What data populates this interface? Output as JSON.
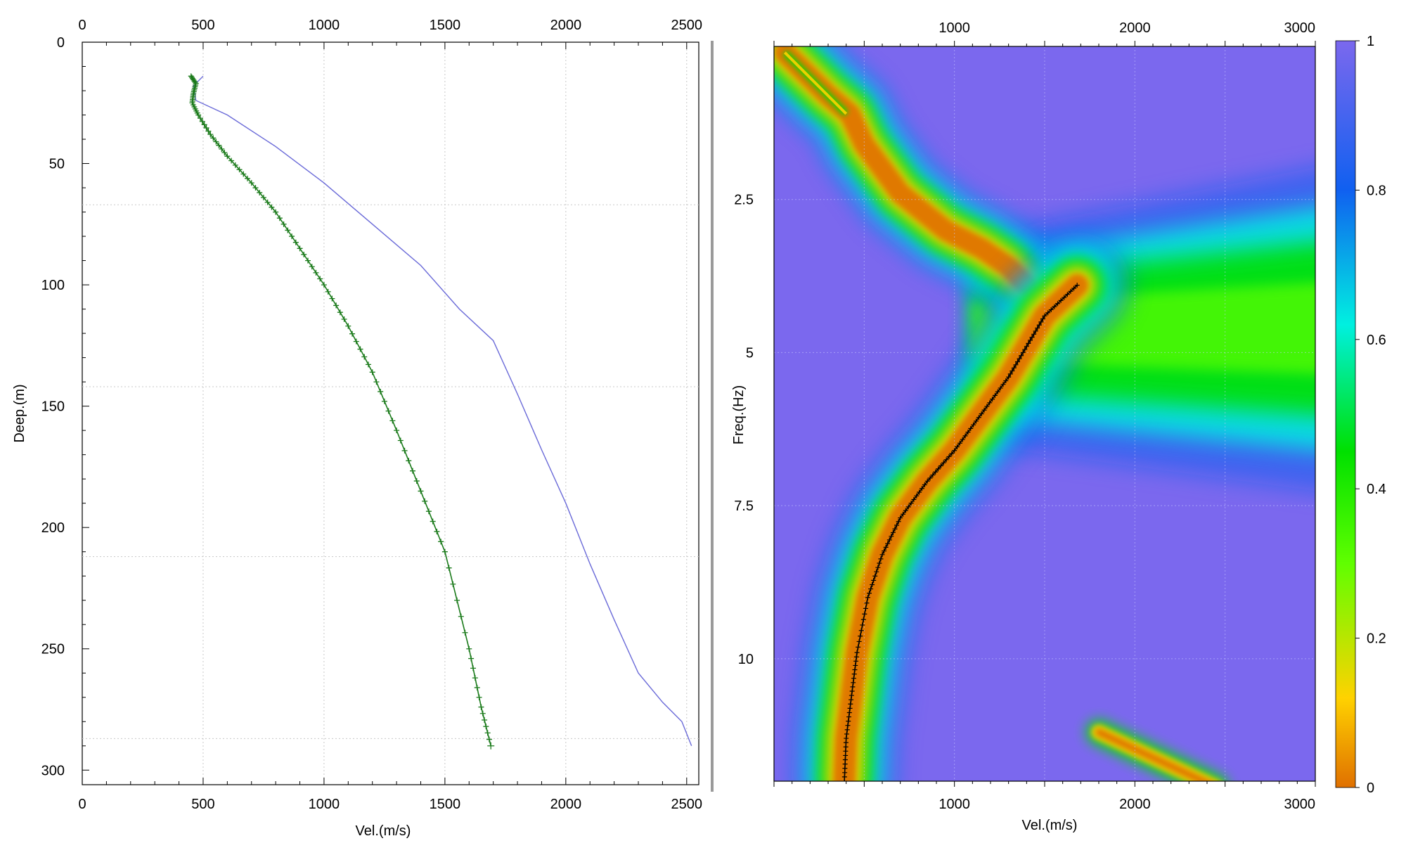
{
  "chart_data": [
    {
      "type": "line",
      "xlabel": "Vel.(m/s)",
      "ylabel": "Deep.(m)",
      "xlim": [
        0,
        2550
      ],
      "ylim": [
        0,
        306
      ],
      "y_inverted": true,
      "x_ticks": [
        0,
        500,
        1000,
        1500,
        2000,
        2500
      ],
      "x_tick_labels": [
        "0",
        "500",
        "1000",
        "1500",
        "2000",
        "2500"
      ],
      "y_ticks": [
        0,
        50,
        100,
        150,
        200,
        250,
        300
      ],
      "y_tick_labels": [
        "0",
        "50",
        "100",
        "150",
        "200",
        "250",
        "300"
      ],
      "x_axis_labels_top_and_bottom": true,
      "grid": "dotted",
      "series": [
        {
          "color": "#6a6ad8",
          "marker": "none",
          "points": [
            [
              500,
              14
            ],
            [
              460,
              18
            ],
            [
              470,
              24
            ],
            [
              600,
              30
            ],
            [
              800,
              43
            ],
            [
              1000,
              58
            ],
            [
              1200,
              75
            ],
            [
              1400,
              92
            ],
            [
              1560,
              110
            ],
            [
              1700,
              123
            ],
            [
              1800,
              145
            ],
            [
              1900,
              168
            ],
            [
              2000,
              190
            ],
            [
              2100,
              215
            ],
            [
              2200,
              238
            ],
            [
              2300,
              260
            ],
            [
              2400,
              272
            ],
            [
              2480,
              280
            ],
            [
              2520,
              290
            ]
          ]
        },
        {
          "color": "#1a7a1a",
          "marker": "+",
          "points": [
            [
              450,
              14
            ],
            [
              470,
              17
            ],
            [
              460,
              21
            ],
            [
              455,
              25
            ],
            [
              480,
              30
            ],
            [
              530,
              38
            ],
            [
              600,
              47
            ],
            [
              700,
              58
            ],
            [
              800,
              70
            ],
            [
              900,
              85
            ],
            [
              1000,
              100
            ],
            [
              1100,
              117
            ],
            [
              1200,
              136
            ],
            [
              1300,
              160
            ],
            [
              1400,
              185
            ],
            [
              1500,
              210
            ],
            [
              1600,
              250
            ],
            [
              1650,
              274
            ],
            [
              1690,
              290
            ]
          ]
        }
      ]
    },
    {
      "type": "heatmap",
      "xlabel": "Vel.(m/s)",
      "ylabel": "Freq.(Hz)",
      "xlim": [
        0,
        3000
      ],
      "ylim": [
        0,
        12
      ],
      "y_inverted": true,
      "x_ticks": [
        1000,
        2000,
        3000
      ],
      "x_tick_labels": [
        "1000",
        "2000",
        "3000"
      ],
      "y_ticks": [
        2.5,
        5,
        7.5,
        10
      ],
      "y_tick_labels": [
        "2.5",
        "5",
        "7.5",
        "10"
      ],
      "x_axis_labels_top_and_bottom": true,
      "grid": "dotted",
      "colorbar": {
        "range": [
          0,
          1
        ],
        "ticks": [
          0,
          0.2,
          0.4,
          0.6,
          0.8,
          1
        ],
        "tick_labels": [
          "0",
          "0.2",
          "0.4",
          "0.6",
          "0.8",
          "1"
        ],
        "colors": [
          "#e07000",
          "#ffd200",
          "#00e000",
          "#00f0e0",
          "#1060f0",
          "#7b68ee"
        ]
      },
      "background_color": "#7b68ee",
      "ridge": [
        [
          60,
          0.1
        ],
        [
          300,
          0.8
        ],
        [
          420,
          1.1
        ],
        [
          500,
          1.6
        ],
        [
          700,
          2.4
        ],
        [
          950,
          3.0
        ],
        [
          1150,
          3.3
        ],
        [
          1300,
          3.6
        ],
        [
          1400,
          3.9
        ]
      ],
      "wide_band": {
        "center": 4.6,
        "sigma": 0.85
      },
      "secondary_ridge": [
        [
          1800,
          11.2
        ],
        [
          2250,
          11.8
        ]
      ],
      "picked_curve": {
        "color": "#000000",
        "marker": "+",
        "points": [
          [
            1680,
            3.9
          ],
          [
            1500,
            4.4
          ],
          [
            1400,
            4.9
          ],
          [
            1300,
            5.4
          ],
          [
            1150,
            6.0
          ],
          [
            1000,
            6.6
          ],
          [
            850,
            7.1
          ],
          [
            700,
            7.7
          ],
          [
            600,
            8.3
          ],
          [
            520,
            9.0
          ],
          [
            460,
            9.9
          ],
          [
            430,
            10.6
          ],
          [
            400,
            11.3
          ],
          [
            390,
            12.0
          ]
        ]
      }
    }
  ]
}
